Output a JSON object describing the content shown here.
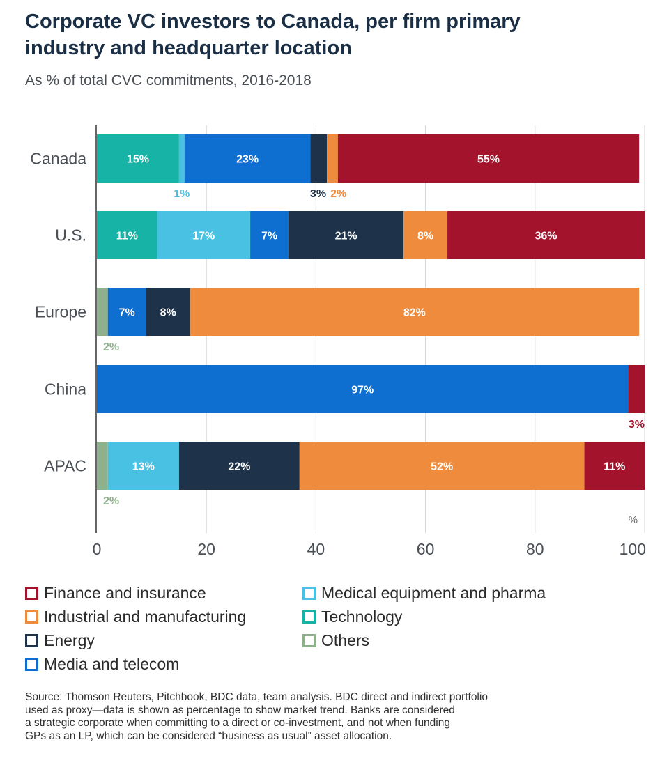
{
  "header": {
    "title_line1": "Corporate VC investors to Canada, per firm primary",
    "title_line2": "industry and headquarter location",
    "subtitle": "As % of total CVC commitments, 2016-2018"
  },
  "chart_data": {
    "type": "bar",
    "orientation": "horizontal",
    "stacked": true,
    "categories": [
      "Canada",
      "U.S.",
      "Europe",
      "China",
      "APAC"
    ],
    "series": [
      {
        "name": "Technology",
        "color": "#17b3a6",
        "values": [
          15,
          11,
          0,
          0,
          0
        ],
        "labels": [
          "15%",
          "11%",
          "",
          "",
          ""
        ]
      },
      {
        "name": "Others",
        "color": "#8fb08c",
        "values": [
          0,
          0,
          2,
          0,
          2
        ],
        "labels": [
          "",
          "",
          "2%",
          "",
          "2%"
        ]
      },
      {
        "name": "Medical equipment and pharma",
        "color": "#49c1e3",
        "values": [
          1,
          17,
          0,
          0,
          13
        ],
        "labels": [
          "1%",
          "17%",
          "",
          "",
          "13%"
        ]
      },
      {
        "name": "Media and telecom",
        "color": "#0f6fd0",
        "values": [
          23,
          7,
          7,
          97,
          0
        ],
        "labels": [
          "23%",
          "7%",
          "7%",
          "97%",
          ""
        ]
      },
      {
        "name": "Energy",
        "color": "#1e3349",
        "values": [
          3,
          21,
          8,
          0,
          22
        ],
        "labels": [
          "3%",
          "21%",
          "8%",
          "",
          "22%"
        ]
      },
      {
        "name": "Industrial and manufacturing",
        "color": "#ef8b3c",
        "values": [
          2,
          8,
          82,
          0,
          52
        ],
        "labels": [
          "2%",
          "8%",
          "82%",
          "",
          "52%"
        ]
      },
      {
        "name": "Finance and insurance",
        "color": "#a3132b",
        "values": [
          55,
          36,
          0,
          3,
          11
        ],
        "labels": [
          "55%",
          "36%",
          "",
          "3%",
          "11%"
        ]
      }
    ],
    "xlim": [
      0,
      100
    ],
    "xticks": [
      0,
      20,
      40,
      60,
      80,
      100
    ],
    "xtick_labels": [
      "0",
      "20",
      "40",
      "60",
      "80",
      "100"
    ],
    "unit_label": "%",
    "grid": true
  },
  "legend": [
    {
      "name": "Finance and insurance",
      "color": "#a3132b"
    },
    {
      "name": "Industrial and manufacturing",
      "color": "#ef8b3c"
    },
    {
      "name": "Energy",
      "color": "#1e3349"
    },
    {
      "name": "Media and telecom",
      "color": "#0f6fd0"
    },
    {
      "name": "Medical equipment and pharma",
      "color": "#49c1e3"
    },
    {
      "name": "Technology",
      "color": "#17b3a6"
    },
    {
      "name": "Others",
      "color": "#8fb08c"
    }
  ],
  "source": {
    "line1": "Source: Thomson Reuters, Pitchbook, BDC data, team analysis. BDC direct and indirect portfolio",
    "line2": "used as proxy—data is shown as percentage to show market trend. Banks are considered",
    "line3": "a strategic corporate when committing to a direct or co-investment, and not when funding",
    "line4": "GPs as an LP, which can be considered “business as usual” asset allocation."
  }
}
